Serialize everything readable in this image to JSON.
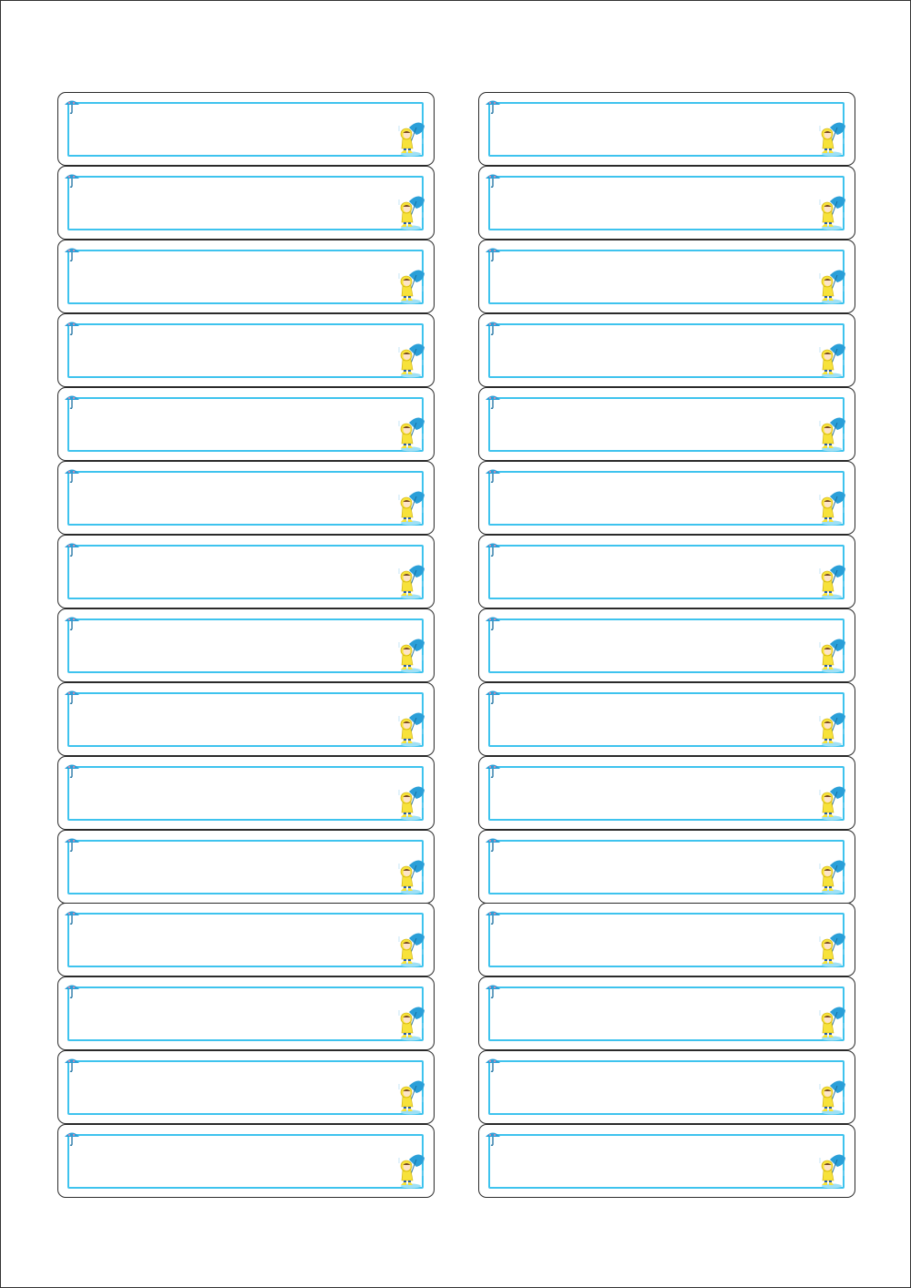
{
  "sheet": {
    "rows": 15,
    "columns": 2
  },
  "colors": {
    "label_border": "#2a2a2a",
    "inner_frame": "#3ec3ee",
    "umbrella": "#2a9fd8",
    "raincoat": "#f7e23a"
  },
  "icons": {
    "corner": "umbrella-icon",
    "character": "child-with-umbrella-icon"
  }
}
